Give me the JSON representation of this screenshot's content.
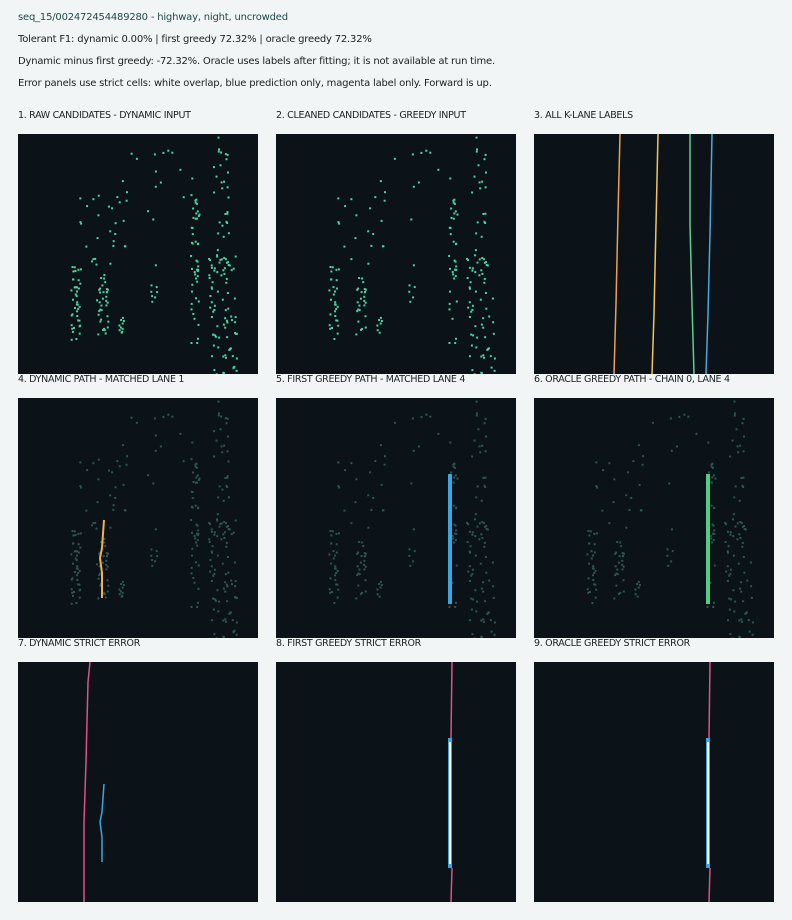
{
  "header": {
    "title": "seq_15/002472454489280 - highway, night, uncrowded",
    "f1_line": "Tolerant F1: dynamic 0.00% | first greedy 72.32% | oracle greedy 72.32%",
    "diff_line": "Dynamic minus first greedy: -72.32%. Oracle uses labels after fitting; it is not available at run time.",
    "legend_line": "Error panels use strict cells: white overlap, blue prediction only, magenta label only. Forward is up."
  },
  "panels": [
    {
      "title": "1. RAW CANDIDATES - DYNAMIC INPUT"
    },
    {
      "title": "2. CLEANED CANDIDATES - GREEDY INPUT"
    },
    {
      "title": "3. ALL K-LANE LABELS"
    },
    {
      "title": "4. DYNAMIC PATH - MATCHED LANE 1"
    },
    {
      "title": "5. FIRST GREEDY PATH - MATCHED LANE 4"
    },
    {
      "title": "6. ORACLE GREEDY PATH - CHAIN 0, LANE 4"
    },
    {
      "title": "7. DYNAMIC STRICT ERROR"
    },
    {
      "title": "8. FIRST GREEDY STRICT ERROR"
    },
    {
      "title": "9. ORACLE GREEDY STRICT ERROR"
    }
  ],
  "colors": {
    "panel_bg": "#0b1318",
    "candidate": "#4fd1a0",
    "candidate_dim": "#2f5552",
    "lane_colors": [
      "#f0a04b",
      "#f4c35a",
      "#5fcf8c",
      "#4aa8e0"
    ],
    "dynamic_path": "#f4b04a",
    "greedy_path": "#3aa6e0",
    "oracle_path": "#4fcf86",
    "error_overlap": "#ffffff",
    "error_pred_only": "#3aa6e0",
    "error_label_only": "#e0508a"
  }
}
